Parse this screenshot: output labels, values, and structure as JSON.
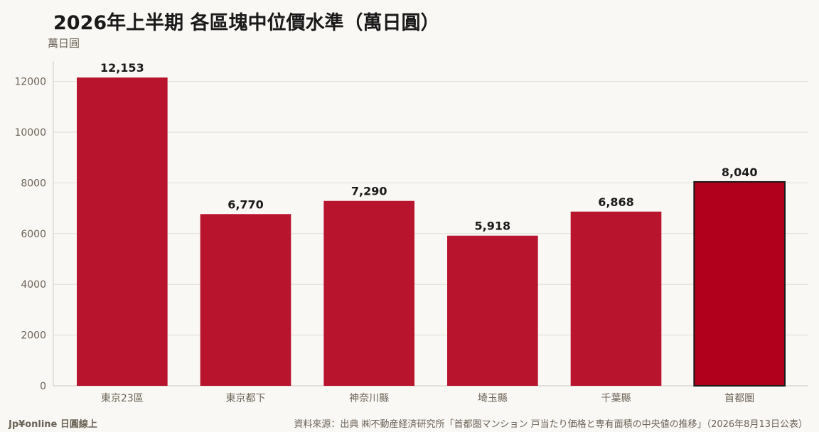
{
  "header": {
    "title": "2026年上半期 各區塊中位價水準（萬日圓）",
    "unit_label": "萬日圓"
  },
  "footer": {
    "brand": "Jp¥online 日圓線上",
    "source": "資料來源：出典 ㈱不動産経済研究所「首都圏マンション 戸当たり価格と専有面積の中央値の推移」（2026年8月13日公表）"
  },
  "colors": {
    "bar": "#b8142e",
    "highlight_bar": "#b0001c",
    "highlight_border": "#1a1a1a",
    "grid": "#e2ddd6",
    "tick_text": "#6b6257",
    "value_text": "#1a1a1a"
  },
  "chart_data": {
    "type": "bar",
    "title": "2026年上半期 各區塊中位價水準（萬日圓）",
    "ylabel": "萬日圓",
    "xlabel": "",
    "categories": [
      "東京23區",
      "東京都下",
      "神奈川縣",
      "埼玉縣",
      "千葉縣",
      "首都圏"
    ],
    "values": [
      12153,
      6770,
      7290,
      5918,
      6868,
      8040
    ],
    "value_labels": [
      "12,153",
      "6,770",
      "7,290",
      "5,918",
      "6,868",
      "8,040"
    ],
    "highlight_category": "首都圏",
    "ylim": [
      0,
      12800
    ],
    "yticks": [
      0,
      2000,
      4000,
      6000,
      8000,
      10000,
      12000
    ],
    "grid": true,
    "legend": "none"
  }
}
